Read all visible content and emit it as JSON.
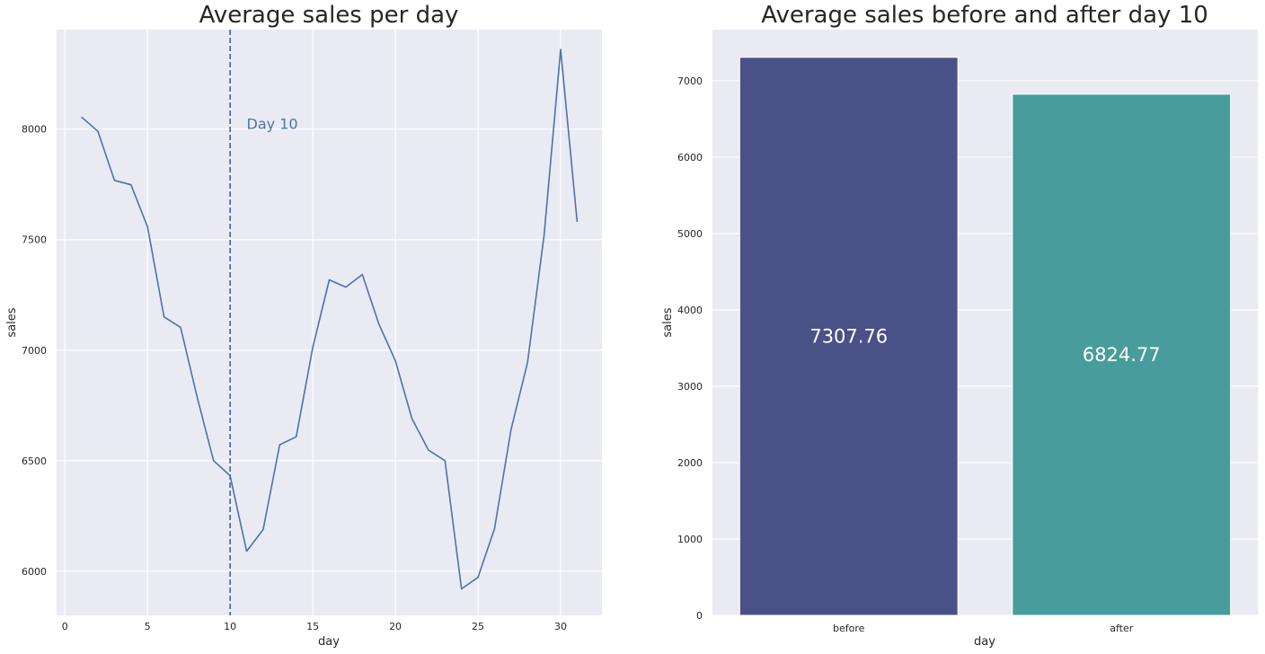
{
  "chart_data": [
    {
      "type": "line",
      "title": "Average sales per day",
      "xlabel": "day",
      "ylabel": "sales",
      "xlim": [
        -0.5,
        32.5
      ],
      "ylim": [
        5800,
        8450
      ],
      "xticks": [
        0,
        5,
        10,
        15,
        20,
        25,
        30
      ],
      "yticks": [
        6000,
        6500,
        7000,
        7500,
        8000
      ],
      "grid": true,
      "line_color": "#4c72b0",
      "x": [
        1,
        2,
        3,
        4,
        5,
        6,
        7,
        8,
        9,
        10,
        11,
        12,
        13,
        14,
        15,
        16,
        17,
        18,
        19,
        20,
        21,
        22,
        23,
        24,
        25,
        26,
        27,
        28,
        29,
        30,
        31
      ],
      "y": [
        8055,
        7990,
        7768,
        7748,
        7558,
        7150,
        7103,
        6790,
        6500,
        6432,
        6090,
        6188,
        6572,
        6608,
        7012,
        7318,
        7285,
        7342,
        7118,
        6952,
        6690,
        6548,
        6500,
        5920,
        5972,
        6192,
        6640,
        6945,
        7520,
        8360,
        7580
      ],
      "vline": {
        "x": 10,
        "style": "dashed",
        "color": "#4c72b0"
      },
      "annotation": {
        "text": "Day 10",
        "x": 11,
        "y": 8000,
        "color": "#4c72b0"
      }
    },
    {
      "type": "bar",
      "title": "Average sales before and after day 10",
      "xlabel": "day",
      "ylabel": "sales",
      "categories": [
        "before",
        "after"
      ],
      "values": [
        7307.76,
        6824.77
      ],
      "value_labels": [
        "7307.76",
        "6824.77"
      ],
      "colors": [
        "#4a5187",
        "#489c9c"
      ],
      "ylim": [
        0,
        7670
      ],
      "yticks": [
        0,
        1000,
        2000,
        3000,
        4000,
        5000,
        6000,
        7000
      ],
      "grid": true
    }
  ]
}
